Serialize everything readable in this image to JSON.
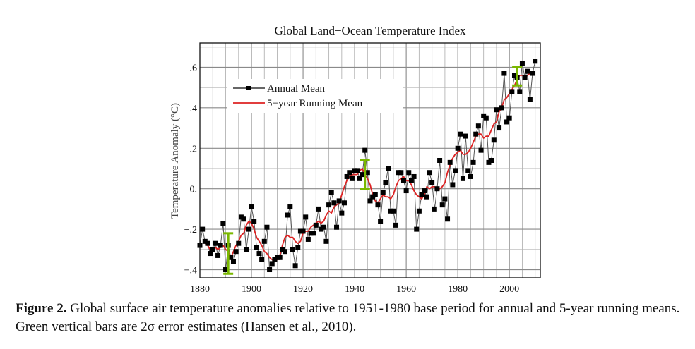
{
  "chart_data": {
    "type": "line",
    "title": "Global Land−Ocean Temperature Index",
    "xlabel": "",
    "ylabel": "Temperature Anomaly (°C)",
    "xlim": [
      1880,
      2012
    ],
    "ylim": [
      -0.44,
      0.72
    ],
    "x_ticks": [
      1880,
      1900,
      1920,
      1940,
      1960,
      1980,
      2000
    ],
    "y_ticks": [
      -0.4,
      -0.2,
      0.0,
      0.2,
      0.4,
      0.6
    ],
    "y_tick_labels": [
      "−.4",
      "−.2",
      "0.",
      ".2",
      ".4",
      ".6"
    ],
    "grid": true,
    "legend_position": "top-left",
    "series": [
      {
        "name": "Annual Mean",
        "color": "#555555",
        "marker": "square",
        "marker_color": "#000000",
        "x": [
          1880,
          1881,
          1882,
          1883,
          1884,
          1885,
          1886,
          1887,
          1888,
          1889,
          1890,
          1891,
          1892,
          1893,
          1894,
          1895,
          1896,
          1897,
          1898,
          1899,
          1900,
          1901,
          1902,
          1903,
          1904,
          1905,
          1906,
          1907,
          1908,
          1909,
          1910,
          1911,
          1912,
          1913,
          1914,
          1915,
          1916,
          1917,
          1918,
          1919,
          1920,
          1921,
          1922,
          1923,
          1924,
          1925,
          1926,
          1927,
          1928,
          1929,
          1930,
          1931,
          1932,
          1933,
          1934,
          1935,
          1936,
          1937,
          1938,
          1939,
          1940,
          1941,
          1942,
          1943,
          1944,
          1945,
          1946,
          1947,
          1948,
          1949,
          1950,
          1951,
          1952,
          1953,
          1954,
          1955,
          1956,
          1957,
          1958,
          1959,
          1960,
          1961,
          1962,
          1963,
          1964,
          1965,
          1966,
          1967,
          1968,
          1969,
          1970,
          1971,
          1972,
          1973,
          1974,
          1975,
          1976,
          1977,
          1978,
          1979,
          1980,
          1981,
          1982,
          1983,
          1984,
          1985,
          1986,
          1987,
          1988,
          1989,
          1990,
          1991,
          1992,
          1993,
          1994,
          1995,
          1996,
          1997,
          1998,
          1999,
          2000,
          2001,
          2002,
          2003,
          2004,
          2005,
          2006,
          2007,
          2008,
          2009,
          2010
        ],
        "values": [
          -0.28,
          -0.2,
          -0.26,
          -0.27,
          -0.32,
          -0.3,
          -0.27,
          -0.33,
          -0.28,
          -0.17,
          -0.4,
          -0.28,
          -0.34,
          -0.36,
          -0.31,
          -0.27,
          -0.14,
          -0.15,
          -0.3,
          -0.2,
          -0.09,
          -0.16,
          -0.29,
          -0.32,
          -0.35,
          -0.26,
          -0.19,
          -0.4,
          -0.37,
          -0.35,
          -0.34,
          -0.34,
          -0.3,
          -0.31,
          -0.13,
          -0.09,
          -0.3,
          -0.38,
          -0.29,
          -0.21,
          -0.21,
          -0.14,
          -0.25,
          -0.22,
          -0.22,
          -0.18,
          -0.1,
          -0.2,
          -0.19,
          -0.26,
          -0.08,
          -0.02,
          -0.07,
          -0.19,
          -0.06,
          -0.12,
          -0.07,
          0.06,
          0.08,
          0.05,
          0.09,
          0.09,
          0.05,
          0.07,
          0.19,
          0.08,
          -0.06,
          -0.04,
          -0.03,
          -0.08,
          -0.16,
          -0.02,
          0.03,
          0.1,
          -0.11,
          -0.11,
          -0.18,
          0.08,
          0.08,
          0.04,
          -0.01,
          0.08,
          0.04,
          0.06,
          -0.2,
          -0.11,
          -0.03,
          -0.01,
          -0.04,
          0.08,
          0.03,
          -0.1,
          0.0,
          0.14,
          -0.08,
          -0.05,
          -0.15,
          0.13,
          0.02,
          0.09,
          0.2,
          0.27,
          0.05,
          0.26,
          0.09,
          0.06,
          0.13,
          0.27,
          0.31,
          0.19,
          0.36,
          0.35,
          0.13,
          0.14,
          0.24,
          0.39,
          0.3,
          0.4,
          0.57,
          0.33,
          0.35,
          0.48,
          0.56,
          0.55,
          0.48,
          0.62,
          0.55,
          0.58,
          0.44,
          0.57,
          0.63
        ]
      },
      {
        "name": "5−year Running Mean",
        "color": "#dd2222",
        "x": [
          1882,
          1883,
          1884,
          1885,
          1886,
          1887,
          1888,
          1889,
          1890,
          1891,
          1892,
          1893,
          1894,
          1895,
          1896,
          1897,
          1898,
          1899,
          1900,
          1901,
          1902,
          1903,
          1904,
          1905,
          1906,
          1907,
          1908,
          1909,
          1910,
          1911,
          1912,
          1913,
          1914,
          1915,
          1916,
          1917,
          1918,
          1919,
          1920,
          1921,
          1922,
          1923,
          1924,
          1925,
          1926,
          1927,
          1928,
          1929,
          1930,
          1931,
          1932,
          1933,
          1934,
          1935,
          1936,
          1937,
          1938,
          1939,
          1940,
          1941,
          1942,
          1943,
          1944,
          1945,
          1946,
          1947,
          1948,
          1949,
          1950,
          1951,
          1952,
          1953,
          1954,
          1955,
          1956,
          1957,
          1958,
          1959,
          1960,
          1961,
          1962,
          1963,
          1964,
          1965,
          1966,
          1967,
          1968,
          1969,
          1970,
          1971,
          1972,
          1973,
          1974,
          1975,
          1976,
          1977,
          1978,
          1979,
          1980,
          1981,
          1982,
          1983,
          1984,
          1985,
          1986,
          1987,
          1988,
          1989,
          1990,
          1991,
          1992,
          1993,
          1994,
          1995,
          1996,
          1997,
          1998,
          1999,
          2000,
          2001,
          2002,
          2003,
          2004,
          2005,
          2006,
          2007,
          2008
        ],
        "values": [
          -0.27,
          -0.28,
          -0.3,
          -0.3,
          -0.29,
          -0.3,
          -0.29,
          -0.28,
          -0.3,
          -0.31,
          -0.34,
          -0.31,
          -0.28,
          -0.26,
          -0.23,
          -0.22,
          -0.18,
          -0.16,
          -0.17,
          -0.2,
          -0.24,
          -0.26,
          -0.28,
          -0.31,
          -0.32,
          -0.34,
          -0.35,
          -0.36,
          -0.35,
          -0.33,
          -0.28,
          -0.24,
          -0.23,
          -0.24,
          -0.24,
          -0.26,
          -0.27,
          -0.26,
          -0.22,
          -0.21,
          -0.21,
          -0.19,
          -0.18,
          -0.17,
          -0.16,
          -0.17,
          -0.16,
          -0.13,
          -0.11,
          -0.12,
          -0.09,
          -0.08,
          -0.07,
          -0.03,
          0.01,
          0.04,
          0.06,
          0.07,
          0.07,
          0.07,
          0.09,
          0.1,
          0.07,
          0.05,
          0.02,
          -0.03,
          -0.06,
          -0.07,
          -0.05,
          -0.03,
          -0.04,
          -0.04,
          -0.05,
          -0.03,
          0.01,
          0.04,
          0.05,
          0.06,
          0.04,
          0.04,
          0.02,
          -0.01,
          -0.03,
          -0.04,
          -0.05,
          -0.03,
          0.01,
          0.0,
          0.01,
          0.01,
          0.0,
          0.0,
          0.01,
          0.03,
          0.08,
          0.12,
          0.15,
          0.17,
          0.18,
          0.19,
          0.17,
          0.17,
          0.18,
          0.2,
          0.23,
          0.26,
          0.27,
          0.27,
          0.25,
          0.26,
          0.26,
          0.29,
          0.32,
          0.33,
          0.38,
          0.4,
          0.44,
          0.45,
          0.47,
          0.49,
          0.51,
          0.54,
          0.56,
          0.56,
          0.55,
          0.56,
          0.57
        ]
      }
    ],
    "error_bars": {
      "color": "#7ab800",
      "items": [
        {
          "x": 1891,
          "low": -0.42,
          "high": -0.22
        },
        {
          "x": 1944,
          "low": 0.0,
          "high": 0.14
        },
        {
          "x": 2003,
          "low": 0.51,
          "high": 0.6
        }
      ]
    }
  },
  "caption": {
    "lead": "Figure 2.",
    "text": "Global surface air temperature anomalies relative to 1951-1980 base period for annual and 5-year running means.  Green vertical bars are 2σ error estimates (Hansen et al., 2010)."
  }
}
